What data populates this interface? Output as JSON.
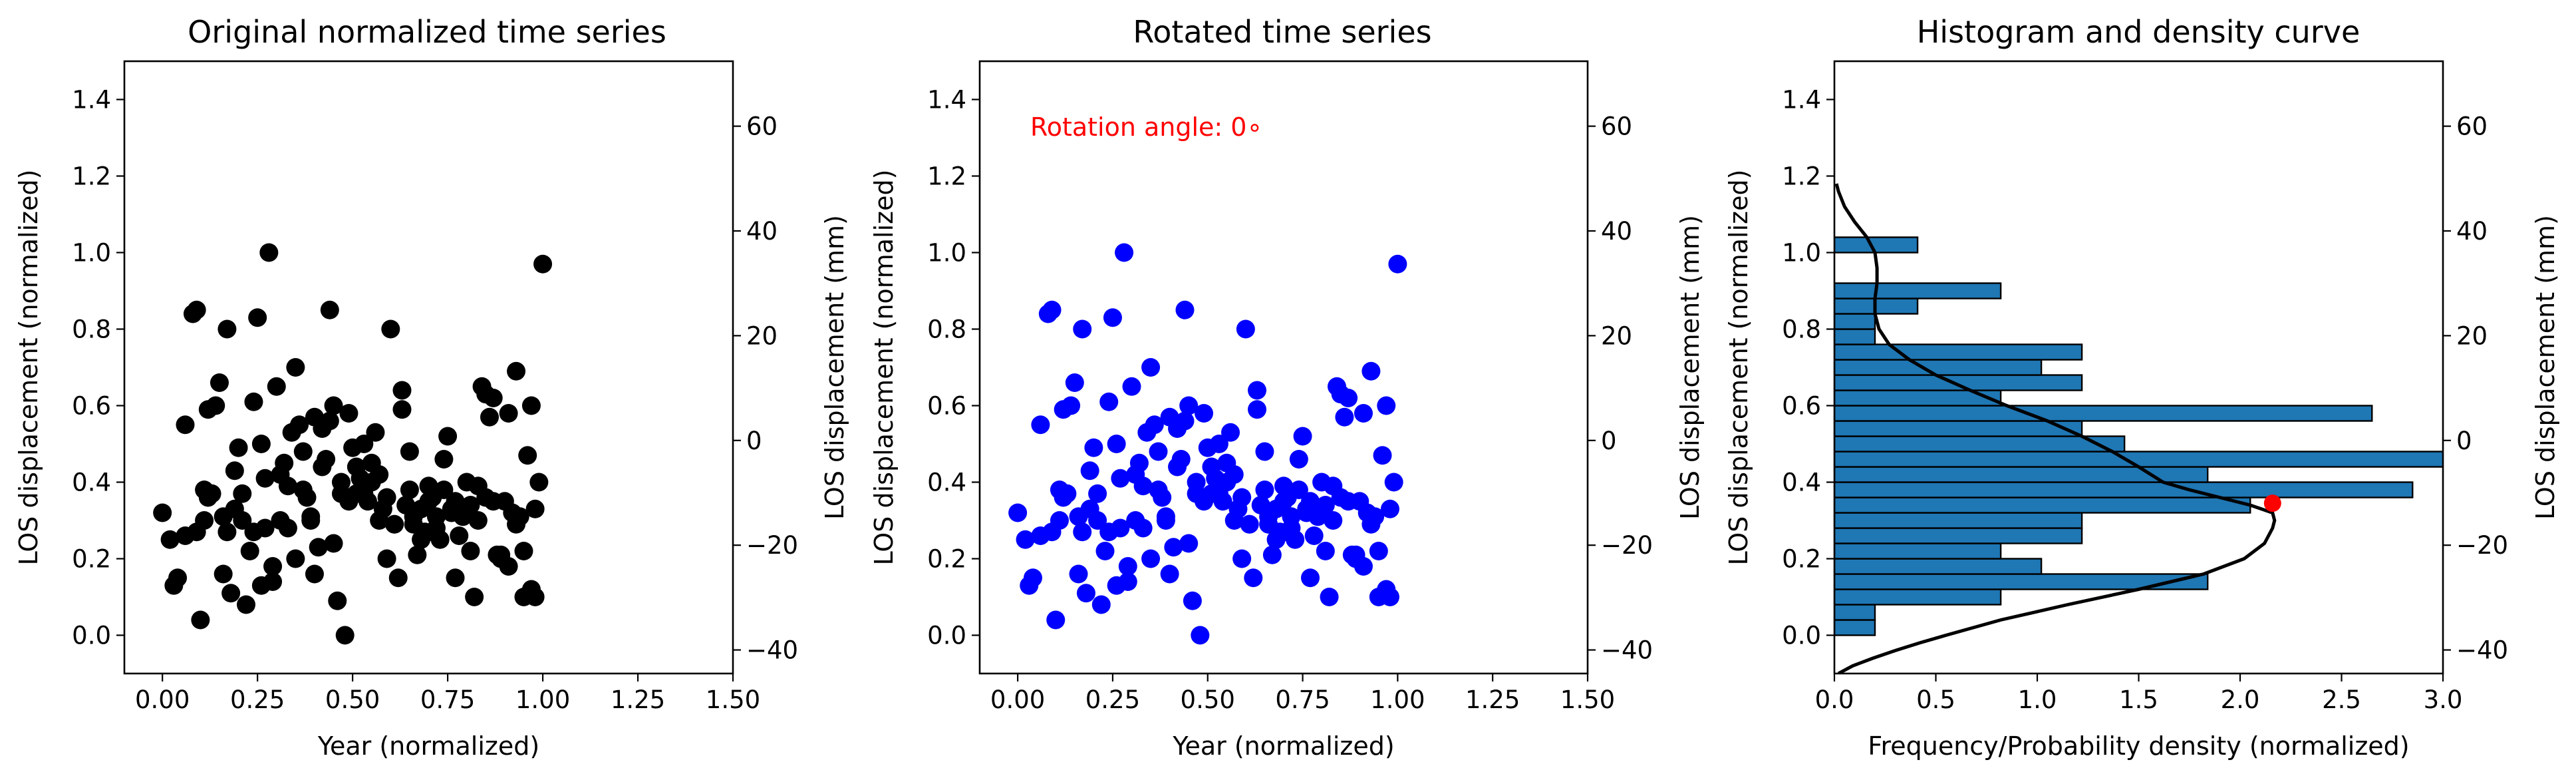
{
  "chart_data": [
    {
      "type": "scatter",
      "title": "Original normalized time series",
      "xlabel": "Year (normalized)",
      "ylabel": "LOS displacement (normalized)",
      "ylabel_right": "LOS displacement (mm)",
      "xlim": [
        -0.1,
        1.5
      ],
      "ylim": [
        -0.1,
        1.5
      ],
      "ylim_right": [
        -44.5,
        72.4
      ],
      "xticks": [
        "0.00",
        "0.25",
        "0.50",
        "0.75",
        "1.00",
        "1.25",
        "1.50"
      ],
      "yticks": [
        "0.0",
        "0.2",
        "0.4",
        "0.6",
        "0.8",
        "1.0",
        "1.2",
        "1.4"
      ],
      "yticks_right": [
        "−40",
        "−20",
        "0",
        "20",
        "40",
        "60"
      ],
      "point_color": "#000000",
      "x": [
        0.0,
        0.02,
        0.03,
        0.04,
        0.06,
        0.08,
        0.09,
        0.1,
        0.11,
        0.11,
        0.12,
        0.13,
        0.15,
        0.16,
        0.17,
        0.18,
        0.19,
        0.2,
        0.21,
        0.22,
        0.23,
        0.24,
        0.25,
        0.26,
        0.27,
        0.28,
        0.29,
        0.3,
        0.31,
        0.32,
        0.33,
        0.34,
        0.35,
        0.36,
        0.37,
        0.38,
        0.39,
        0.4,
        0.41,
        0.42,
        0.43,
        0.44,
        0.45,
        0.46,
        0.47,
        0.48,
        0.49,
        0.5,
        0.51,
        0.52,
        0.53,
        0.54,
        0.55,
        0.56,
        0.57,
        0.58,
        0.59,
        0.6,
        0.61,
        0.62,
        0.63,
        0.64,
        0.65,
        0.66,
        0.67,
        0.68,
        0.69,
        0.7,
        0.71,
        0.72,
        0.73,
        0.74,
        0.75,
        0.76,
        0.77,
        0.78,
        0.79,
        0.8,
        0.81,
        0.82,
        0.83,
        0.84,
        0.85,
        0.86,
        0.87,
        0.88,
        0.89,
        0.9,
        0.91,
        0.92,
        0.93,
        0.94,
        0.95,
        0.96,
        0.97,
        0.98,
        0.99,
        1.0,
        0.09,
        0.27,
        0.44,
        0.63,
        0.26,
        0.19,
        0.37,
        0.53,
        0.72,
        0.85,
        0.93,
        0.14,
        0.31,
        0.47,
        0.57,
        0.68,
        0.77,
        0.89,
        0.06,
        0.24,
        0.4,
        0.49,
        0.65,
        0.81,
        0.95,
        0.17,
        0.35,
        0.55,
        0.74,
        0.83,
        0.98,
        0.12,
        0.29,
        0.42,
        0.61,
        0.7,
        0.79,
        0.91,
        0.21,
        0.33,
        0.45,
        0.59,
        0.76,
        0.87,
        0.97,
        0.16,
        0.39,
        0.51,
        0.66,
        0.71
      ],
      "y": [
        0.32,
        0.25,
        0.13,
        0.15,
        0.26,
        0.84,
        0.27,
        0.04,
        0.38,
        0.3,
        0.59,
        0.37,
        0.66,
        0.16,
        0.8,
        0.11,
        0.43,
        0.49,
        0.3,
        0.08,
        0.22,
        0.61,
        0.83,
        0.5,
        0.41,
        1.0,
        0.14,
        0.65,
        0.3,
        0.45,
        0.39,
        0.53,
        0.7,
        0.55,
        0.38,
        0.36,
        0.31,
        0.57,
        0.23,
        0.54,
        0.46,
        0.85,
        0.6,
        0.09,
        0.4,
        0.0,
        0.58,
        0.49,
        0.44,
        0.41,
        0.37,
        0.35,
        0.45,
        0.53,
        0.42,
        0.33,
        0.36,
        0.8,
        0.29,
        0.15,
        0.64,
        0.34,
        0.38,
        0.31,
        0.21,
        0.33,
        0.27,
        0.39,
        0.36,
        0.28,
        0.25,
        0.38,
        0.52,
        0.33,
        0.15,
        0.26,
        0.31,
        0.4,
        0.22,
        0.1,
        0.3,
        0.65,
        0.36,
        0.57,
        0.62,
        0.21,
        0.2,
        0.35,
        0.58,
        0.32,
        0.69,
        0.31,
        0.1,
        0.47,
        0.12,
        0.1,
        0.4,
        0.97,
        0.85,
        0.28,
        0.56,
        0.59,
        0.13,
        0.33,
        0.48,
        0.5,
        0.31,
        0.63,
        0.29,
        0.6,
        0.42,
        0.37,
        0.3,
        0.25,
        0.35,
        0.21,
        0.55,
        0.27,
        0.16,
        0.35,
        0.48,
        0.34,
        0.22,
        0.27,
        0.2,
        0.4,
        0.46,
        0.39,
        0.33,
        0.36,
        0.18,
        0.44,
        0.29,
        0.35,
        0.31,
        0.18,
        0.37,
        0.28,
        0.24,
        0.2,
        0.32,
        0.35,
        0.6,
        0.31,
        0.3,
        0.37,
        0.29,
        0.27
      ]
    },
    {
      "type": "scatter",
      "title": "Rotated time series",
      "annotation": "Rotation angle: 0∘",
      "xlabel": "Year (normalized)",
      "ylabel": "LOS displacement (normalized)",
      "ylabel_right": "LOS displacement (mm)",
      "xlim": [
        -0.1,
        1.5
      ],
      "ylim": [
        -0.1,
        1.5
      ],
      "ylim_right": [
        -44.5,
        72.4
      ],
      "xticks": [
        "0.00",
        "0.25",
        "0.50",
        "0.75",
        "1.00",
        "1.25",
        "1.50"
      ],
      "yticks": [
        "0.0",
        "0.2",
        "0.4",
        "0.6",
        "0.8",
        "1.0",
        "1.2",
        "1.4"
      ],
      "yticks_right": [
        "−40",
        "−20",
        "0",
        "20",
        "40",
        "60"
      ],
      "point_color": "#0000ff",
      "same_points_as": "Original normalized time series"
    },
    {
      "type": "bar",
      "orientation": "horizontal",
      "title": "Histogram and density curve",
      "xlabel": "Frequency/Probability density (normalized)",
      "ylabel": "LOS displacement (normalized)",
      "ylabel_right": "LOS displacement (mm)",
      "xlim": [
        0.0,
        3.0
      ],
      "ylim": [
        -0.1,
        1.5
      ],
      "ylim_right": [
        -44.5,
        72.4
      ],
      "xticks": [
        "0.0",
        "0.5",
        "1.0",
        "1.5",
        "2.0",
        "2.5",
        "3.0"
      ],
      "yticks": [
        "0.0",
        "0.2",
        "0.4",
        "0.6",
        "0.8",
        "1.0",
        "1.2",
        "1.4"
      ],
      "yticks_right": [
        "−40",
        "−20",
        "0",
        "20",
        "40",
        "60"
      ],
      "bar_color": "#1f77b4",
      "bin_width": 0.04,
      "bins": [
        {
          "y": 0.0,
          "v": 0.2
        },
        {
          "y": 0.04,
          "v": 0.2
        },
        {
          "y": 0.08,
          "v": 0.82
        },
        {
          "y": 0.12,
          "v": 1.84
        },
        {
          "y": 0.16,
          "v": 1.02
        },
        {
          "y": 0.2,
          "v": 0.82
        },
        {
          "y": 0.24,
          "v": 1.22
        },
        {
          "y": 0.28,
          "v": 1.22
        },
        {
          "y": 0.32,
          "v": 2.05
        },
        {
          "y": 0.36,
          "v": 2.85
        },
        {
          "y": 0.4,
          "v": 1.84
        },
        {
          "y": 0.44,
          "v": 3.05
        },
        {
          "y": 0.48,
          "v": 1.43
        },
        {
          "y": 0.52,
          "v": 1.22
        },
        {
          "y": 0.56,
          "v": 2.65
        },
        {
          "y": 0.6,
          "v": 0.82
        },
        {
          "y": 0.64,
          "v": 1.22
        },
        {
          "y": 0.68,
          "v": 1.02
        },
        {
          "y": 0.72,
          "v": 1.22
        },
        {
          "y": 0.76,
          "v": 0.2
        },
        {
          "y": 0.8,
          "v": 0.2
        },
        {
          "y": 0.84,
          "v": 0.41
        },
        {
          "y": 0.88,
          "v": 0.82
        },
        {
          "y": 1.0,
          "v": 0.41
        }
      ],
      "density_curve": {
        "color": "#000000",
        "y": [
          -0.1,
          -0.08,
          -0.06,
          -0.04,
          -0.02,
          0.0,
          0.04,
          0.08,
          0.12,
          0.16,
          0.2,
          0.24,
          0.28,
          0.3,
          0.32,
          0.34,
          0.36,
          0.38,
          0.4,
          0.44,
          0.48,
          0.52,
          0.56,
          0.6,
          0.64,
          0.68,
          0.72,
          0.76,
          0.8,
          0.84,
          0.88,
          0.92,
          0.96,
          1.0,
          1.04,
          1.08,
          1.12,
          1.16,
          1.18
        ],
        "v": [
          0.02,
          0.09,
          0.19,
          0.3,
          0.42,
          0.55,
          0.82,
          1.15,
          1.5,
          1.82,
          2.02,
          2.12,
          2.16,
          2.17,
          2.16,
          2.05,
          1.9,
          1.75,
          1.62,
          1.5,
          1.37,
          1.22,
          1.05,
          0.85,
          0.67,
          0.5,
          0.37,
          0.27,
          0.22,
          0.2,
          0.2,
          0.21,
          0.21,
          0.2,
          0.16,
          0.1,
          0.05,
          0.02,
          0.01
        ]
      },
      "peak_marker": {
        "v": 2.16,
        "y": 0.345,
        "color": "#ff0000"
      }
    }
  ]
}
